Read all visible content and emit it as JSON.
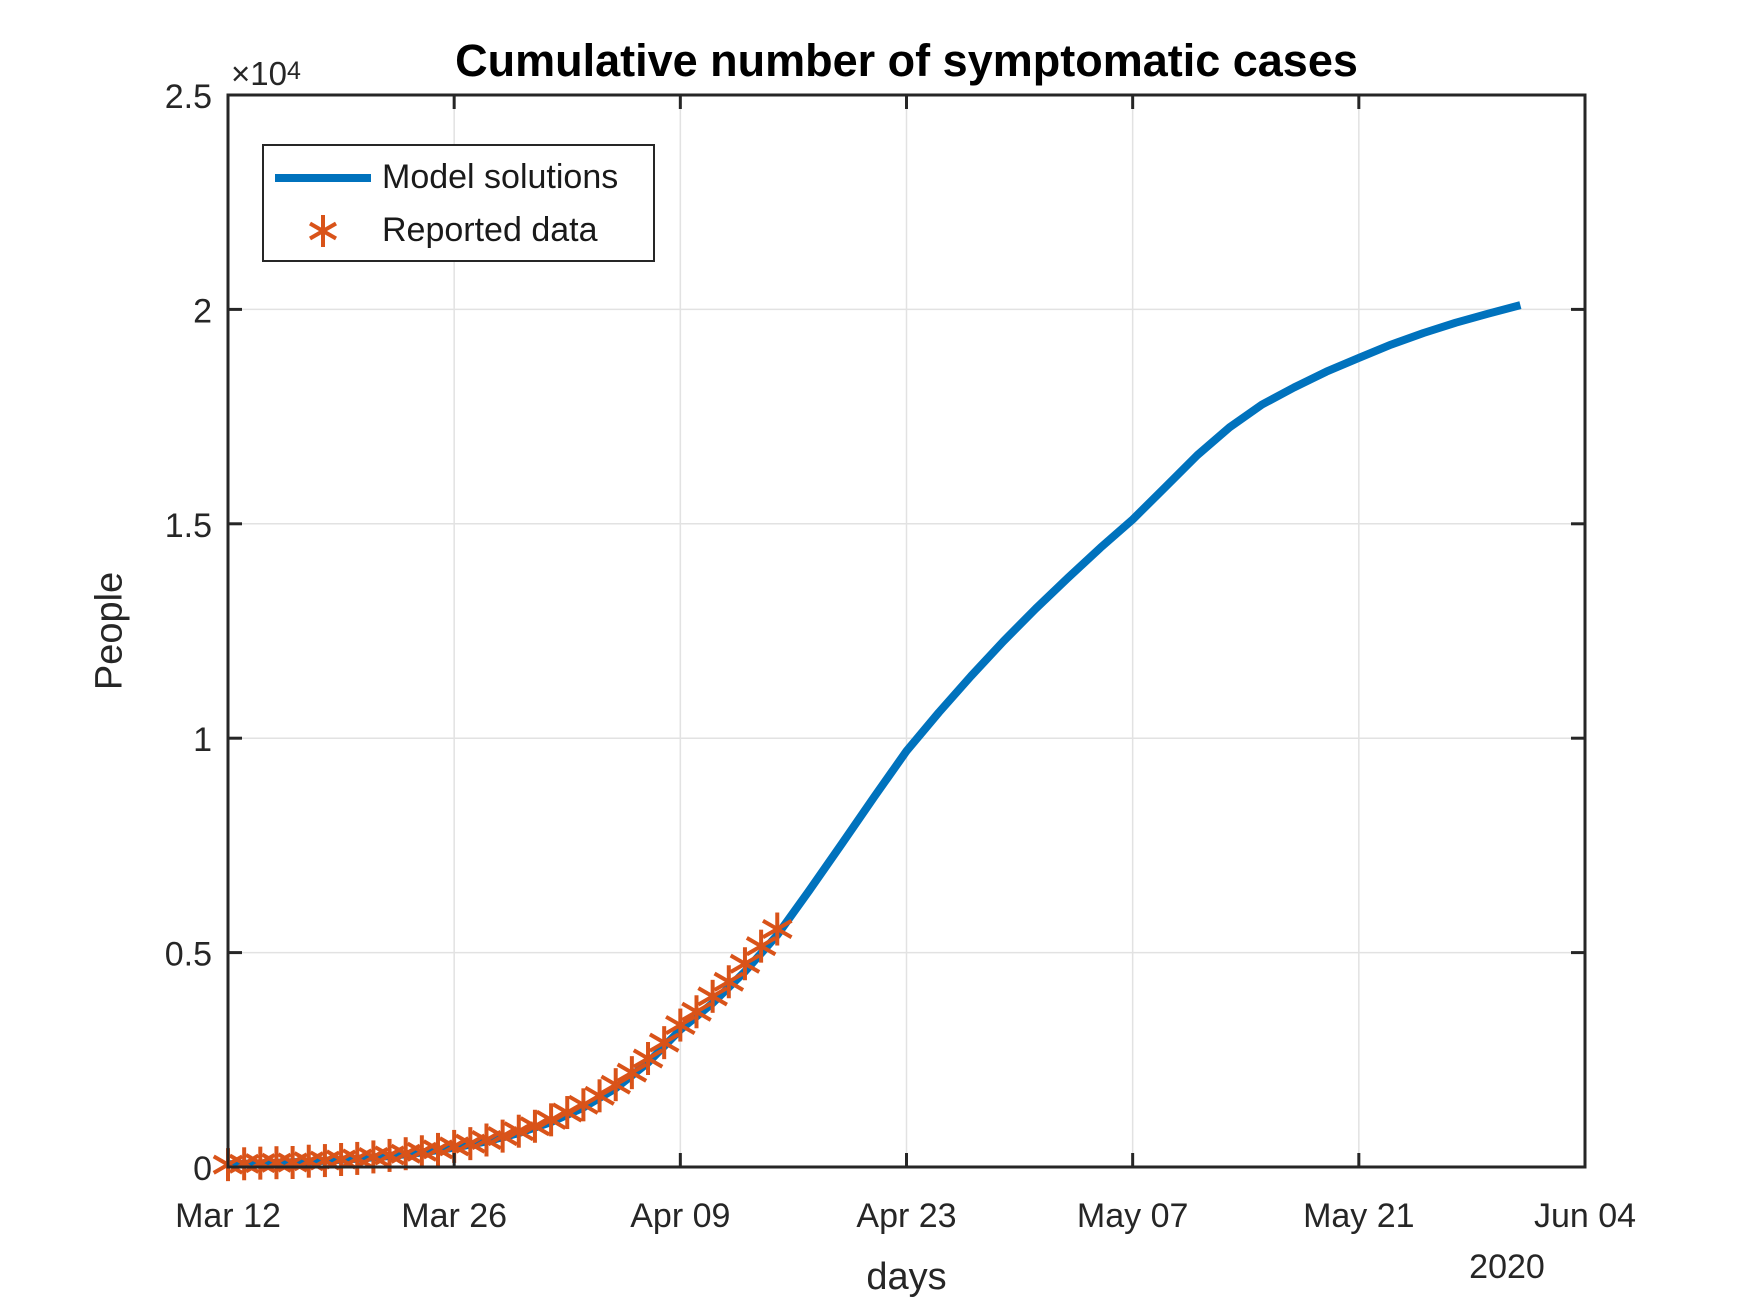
{
  "title": "Cumulative number of symptomatic cases",
  "axes": {
    "xlabel": "days",
    "ylabel": "People",
    "year_label": "2020",
    "y_multiplier_base": "×10",
    "y_multiplier_exponent": "4",
    "xlim_days": [
      0,
      84
    ],
    "ylim": [
      0,
      25000
    ],
    "x_ticks": [
      {
        "label": "Mar 12",
        "day": 0
      },
      {
        "label": "Mar 26",
        "day": 14
      },
      {
        "label": "Apr 09",
        "day": 28
      },
      {
        "label": "Apr 23",
        "day": 42
      },
      {
        "label": "May 07",
        "day": 56
      },
      {
        "label": "May 21",
        "day": 70
      },
      {
        "label": "Jun 04",
        "day": 84
      }
    ],
    "y_ticks": [
      {
        "label": "0",
        "value": 0
      },
      {
        "label": "0.5",
        "value": 5000
      },
      {
        "label": "1",
        "value": 10000
      },
      {
        "label": "1.5",
        "value": 15000
      },
      {
        "label": "2",
        "value": 20000
      },
      {
        "label": "2.5",
        "value": 25000
      }
    ]
  },
  "legend": {
    "items": [
      {
        "label": "Model solutions",
        "marker": "line",
        "color": "#0072BD"
      },
      {
        "label": "Reported data",
        "marker": "asterisk",
        "color": "#D95319"
      }
    ]
  },
  "colors": {
    "model_line": "#0072BD",
    "reported_marker": "#D95319",
    "axis": "#262626",
    "grid": "#E2E2E2",
    "tick_label": "#262626",
    "title": "#000000",
    "background": "#FFFFFF"
  },
  "chart_data": {
    "type": "line",
    "title": "Cumulative number of symptomatic cases",
    "xlabel": "days",
    "ylabel": "People",
    "year": "2020",
    "x_axis_dates": [
      "Mar 12",
      "Mar 26",
      "Apr 09",
      "Apr 23",
      "May 07",
      "May 21",
      "Jun 04"
    ],
    "xlim_days": [
      0,
      84
    ],
    "ylim": [
      0,
      25000
    ],
    "grid": true,
    "legend_position": "northwest",
    "series": [
      {
        "name": "Model solutions",
        "type": "line",
        "color": "#0072BD",
        "line_width": 8,
        "x_days": [
          0,
          2,
          4,
          6,
          8,
          10,
          12,
          14,
          16,
          18,
          20,
          22,
          24,
          26,
          28,
          30,
          32,
          34,
          36,
          38,
          40,
          42,
          44,
          46,
          48,
          50,
          52,
          54,
          56,
          58,
          60,
          62,
          64,
          66,
          68,
          70,
          72,
          74,
          76,
          78,
          80
        ],
        "values": [
          63,
          83,
          110,
          146,
          193,
          256,
          339,
          450,
          596,
          790,
          1046,
          1386,
          1836,
          2432,
          3200,
          3820,
          4560,
          5410,
          6460,
          7540,
          8630,
          9700,
          10600,
          11450,
          12260,
          13020,
          13740,
          14440,
          15100,
          15850,
          16600,
          17250,
          17780,
          18180,
          18550,
          18870,
          19180,
          19450,
          19690,
          19900,
          20100
        ]
      },
      {
        "name": "Reported data",
        "type": "scatter",
        "marker": "asterisk",
        "color": "#D95319",
        "x_days": [
          0,
          1,
          2,
          3,
          4,
          5,
          6,
          7,
          8,
          9,
          10,
          11,
          12,
          13,
          14,
          15,
          16,
          17,
          18,
          19,
          20,
          21,
          22,
          23,
          24,
          25,
          26,
          27,
          28,
          29,
          30,
          31,
          32,
          33,
          34
        ],
        "values": [
          55,
          75,
          90,
          100,
          105,
          135,
          150,
          175,
          200,
          235,
          270,
          310,
          355,
          410,
          480,
          545,
          630,
          720,
          835,
          950,
          1100,
          1270,
          1450,
          1660,
          1920,
          2200,
          2530,
          2900,
          3310,
          3620,
          3980,
          4320,
          4740,
          5150,
          5550
        ]
      }
    ]
  }
}
